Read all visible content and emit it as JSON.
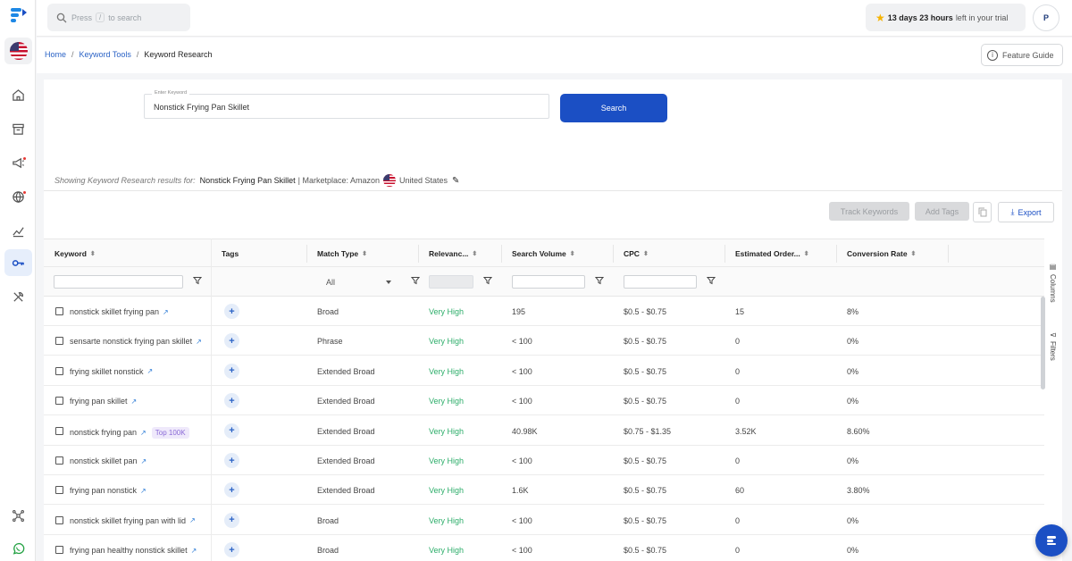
{
  "search": {
    "prefix": "Press",
    "key": "/",
    "suffix": "to search"
  },
  "trial": {
    "highlight": "13 days 23 hours",
    "rest": "left in your trial"
  },
  "user": {
    "initial": "P"
  },
  "breadcrumb": {
    "home": "Home",
    "tools": "Keyword Tools",
    "current": "Keyword Research"
  },
  "feature_guide": "Feature Guide",
  "form": {
    "label": "Enter Keyword",
    "value": "Nonstick Frying Pan Skillet",
    "button": "Search"
  },
  "results": {
    "prefix": "Showing Keyword Research results for:",
    "keyword": "Nonstick Frying Pan Skillet",
    "marketplace": "| Marketplace: Amazon",
    "country": "United States"
  },
  "toolbar": {
    "track": "Track Keywords",
    "tags": "Add Tags",
    "export": "Export"
  },
  "columns": {
    "keyword": "Keyword",
    "tags": "Tags",
    "match": "Match Type",
    "relevance": "Relevanc...",
    "volume": "Search Volume",
    "cpc": "CPC",
    "orders": "Estimated Order...",
    "conversion": "Conversion Rate"
  },
  "filter": {
    "match_all": "All"
  },
  "side": {
    "columns": "Columns",
    "filters": "Filters"
  },
  "rows": [
    {
      "keyword": "nonstick skillet frying pan",
      "badge": "",
      "match": "Broad",
      "relevance": "Very High",
      "volume": "195",
      "cpc": "$0.5 - $0.75",
      "orders": "15",
      "conversion": "8%"
    },
    {
      "keyword": "sensarte nonstick frying pan skillet",
      "badge": "",
      "match": "Phrase",
      "relevance": "Very High",
      "volume": "< 100",
      "cpc": "$0.5 - $0.75",
      "orders": "0",
      "conversion": "0%"
    },
    {
      "keyword": "frying skillet nonstick",
      "badge": "",
      "match": "Extended Broad",
      "relevance": "Very High",
      "volume": "< 100",
      "cpc": "$0.5 - $0.75",
      "orders": "0",
      "conversion": "0%"
    },
    {
      "keyword": "frying pan skillet",
      "badge": "",
      "match": "Extended Broad",
      "relevance": "Very High",
      "volume": "< 100",
      "cpc": "$0.5 - $0.75",
      "orders": "0",
      "conversion": "0%"
    },
    {
      "keyword": "nonstick frying pan",
      "badge": "Top 100K",
      "match": "Extended Broad",
      "relevance": "Very High",
      "volume": "40.98K",
      "cpc": "$0.75 - $1.35",
      "orders": "3.52K",
      "conversion": "8.60%"
    },
    {
      "keyword": "nonstick skillet pan",
      "badge": "",
      "match": "Extended Broad",
      "relevance": "Very High",
      "volume": "< 100",
      "cpc": "$0.5 - $0.75",
      "orders": "0",
      "conversion": "0%"
    },
    {
      "keyword": "frying pan nonstick",
      "badge": "",
      "match": "Extended Broad",
      "relevance": "Very High",
      "volume": "1.6K",
      "cpc": "$0.5 - $0.75",
      "orders": "60",
      "conversion": "3.80%"
    },
    {
      "keyword": "nonstick skillet frying pan with lid",
      "badge": "",
      "match": "Broad",
      "relevance": "Very High",
      "volume": "< 100",
      "cpc": "$0.5 - $0.75",
      "orders": "0",
      "conversion": "0%"
    },
    {
      "keyword": "frying pan healthy nonstick skillet",
      "badge": "",
      "match": "Broad",
      "relevance": "Very High",
      "volume": "< 100",
      "cpc": "$0.5 - $0.75",
      "orders": "0",
      "conversion": "0%"
    }
  ]
}
